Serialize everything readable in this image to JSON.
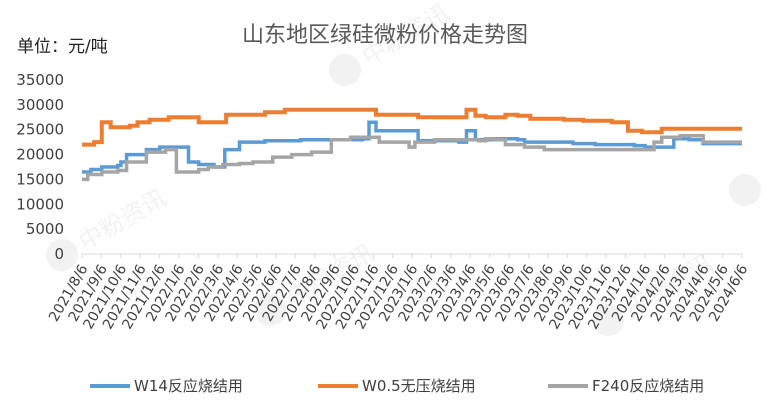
{
  "chart_data": {
    "type": "line",
    "title": "山东地区绿硅微粉价格走势图",
    "unit_label": "单位：元/吨",
    "xlabel": "",
    "ylabel": "",
    "ylim": [
      0,
      35000
    ],
    "yticks": [
      0,
      5000,
      10000,
      15000,
      20000,
      25000,
      30000,
      35000
    ],
    "x_range": [
      "2021-08-06",
      "2024-06-06"
    ],
    "x_tick_labels": [
      "2021/8/6",
      "2021/9/6",
      "2021/10/6",
      "2021/11/6",
      "2021/12/6",
      "2022/1/6",
      "2022/2/6",
      "2022/3/6",
      "2022/4/6",
      "2022/5/6",
      "2022/6/6",
      "2022/7/6",
      "2022/8/6",
      "2022/9/6",
      "2022/10/6",
      "2022/11/6",
      "2022/12/6",
      "2023/1/6",
      "2023/2/6",
      "2023/3/6",
      "2023/4/6",
      "2023/5/6",
      "2023/6/6",
      "2023/7/6",
      "2023/8/6",
      "2023/9/6",
      "2023/10/6",
      "2023/11/6",
      "2023/12/6",
      "2024/1/6",
      "2024/2/6",
      "2024/3/6",
      "2024/4/6",
      "2024/5/6",
      "2024/6/6"
    ],
    "grid": false,
    "legend_position": "bottom",
    "series": [
      {
        "name": "W14反应烧结用",
        "color": "#5B9BD5",
        "step": true,
        "x": [
          "2021-08-06",
          "2021-08-20",
          "2021-09-06",
          "2021-09-20",
          "2021-10-01",
          "2021-10-06",
          "2021-10-15",
          "2021-11-15",
          "2021-12-06",
          "2021-12-15",
          "2022-01-20",
          "2022-02-05",
          "2022-03-01",
          "2022-03-18",
          "2022-04-10",
          "2022-05-20",
          "2022-07-15",
          "2022-09-01",
          "2022-10-20",
          "2022-10-30",
          "2022-11-10",
          "2023-01-01",
          "2023-01-15",
          "2023-03-20",
          "2023-04-01",
          "2023-04-15",
          "2023-05-10",
          "2023-06-20",
          "2023-07-01",
          "2023-09-15",
          "2023-10-20",
          "2023-12-20",
          "2024-01-06",
          "2024-01-20",
          "2024-02-20",
          "2024-03-15",
          "2024-04-06",
          "2024-06-06"
        ],
        "values": [
          16500,
          17000,
          17500,
          17500,
          17800,
          18500,
          20000,
          21000,
          21500,
          21500,
          18500,
          18000,
          17500,
          21000,
          22500,
          22800,
          23000,
          23000,
          23200,
          26500,
          24800,
          24800,
          22800,
          22500,
          24800,
          23000,
          23200,
          23000,
          22500,
          22200,
          22000,
          21800,
          21500,
          21500,
          23200,
          23000,
          22200,
          22200
        ]
      },
      {
        "name": "W0.5无压烧结用",
        "color": "#ED7D31",
        "step": true,
        "x": [
          "2021-08-06",
          "2021-08-25",
          "2021-09-06",
          "2021-09-20",
          "2021-10-20",
          "2021-11-01",
          "2021-11-20",
          "2021-12-20",
          "2022-01-01",
          "2022-02-05",
          "2022-02-20",
          "2022-03-20",
          "2022-05-20",
          "2022-06-20",
          "2022-09-15",
          "2022-10-20",
          "2022-11-10",
          "2023-01-15",
          "2023-02-20",
          "2023-03-20",
          "2023-04-01",
          "2023-04-15",
          "2023-05-01",
          "2023-06-01",
          "2023-06-20",
          "2023-07-10",
          "2023-09-01",
          "2023-10-01",
          "2023-11-01",
          "2023-11-15",
          "2023-12-10",
          "2024-01-01",
          "2024-02-01",
          "2024-03-01",
          "2024-06-06"
        ],
        "values": [
          22000,
          22500,
          26500,
          25500,
          25800,
          26500,
          27000,
          27500,
          27500,
          26500,
          26500,
          28000,
          28500,
          29000,
          29000,
          29000,
          28000,
          27500,
          27500,
          27500,
          29000,
          27800,
          27500,
          28000,
          27800,
          27200,
          27000,
          26800,
          26800,
          26500,
          24800,
          24500,
          25200,
          25200,
          25200
        ]
      },
      {
        "name": "F240反应烧结用",
        "color": "#A5A5A5",
        "step": true,
        "x": [
          "2021-08-06",
          "2021-08-15",
          "2021-09-06",
          "2021-10-01",
          "2021-10-15",
          "2021-11-15",
          "2021-12-15",
          "2022-01-01",
          "2022-02-05",
          "2022-02-20",
          "2022-03-15",
          "2022-04-10",
          "2022-05-01",
          "2022-06-01",
          "2022-07-01",
          "2022-08-01",
          "2022-09-01",
          "2022-10-01",
          "2022-10-30",
          "2022-11-15",
          "2022-12-10",
          "2023-01-01",
          "2023-01-10",
          "2023-02-10",
          "2023-03-20",
          "2023-04-20",
          "2023-05-01",
          "2023-05-15",
          "2023-06-01",
          "2023-07-01",
          "2023-08-01",
          "2023-09-01",
          "2023-10-01",
          "2023-12-01",
          "2024-01-01",
          "2024-01-20",
          "2024-02-01",
          "2024-03-01",
          "2024-04-06",
          "2024-06-06"
        ],
        "values": [
          15000,
          16000,
          16500,
          16800,
          18500,
          20500,
          21000,
          16500,
          17000,
          17500,
          18000,
          18200,
          18500,
          19500,
          20000,
          20500,
          23000,
          23500,
          23500,
          22500,
          22500,
          21500,
          22500,
          23000,
          23000,
          22800,
          23200,
          23000,
          22000,
          21500,
          21000,
          21000,
          21000,
          21000,
          21000,
          22500,
          23500,
          23800,
          22500,
          22500
        ]
      }
    ]
  },
  "watermark_text": "中粉资讯"
}
